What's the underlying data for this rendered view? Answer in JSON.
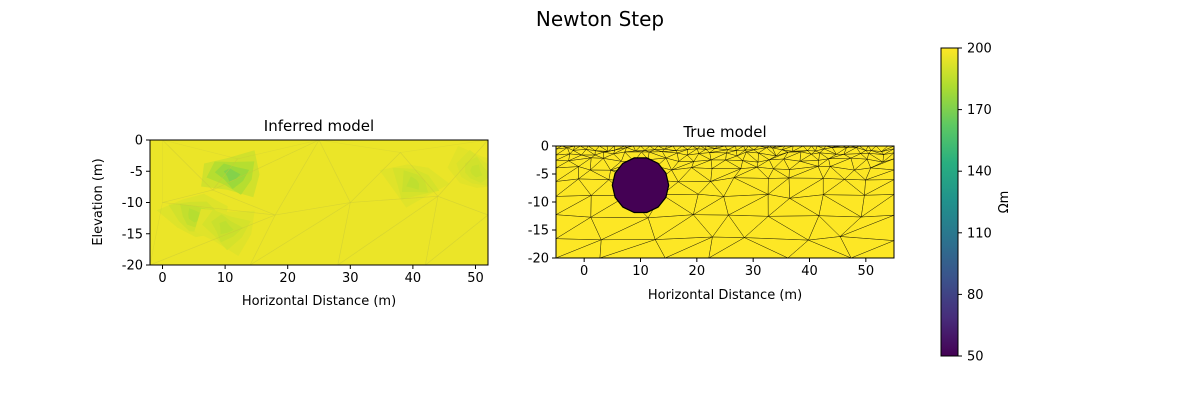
{
  "figure": {
    "title": "Newton Step"
  },
  "chart_data": [
    {
      "type": "heatmap",
      "title": "Inferred model",
      "xlabel": "Horizontal Distance (m)",
      "ylabel": "Elevation (m)",
      "xlim": [
        -2,
        52
      ],
      "ylim": [
        -20,
        0
      ],
      "xticks": [
        0,
        10,
        20,
        30,
        40,
        50
      ],
      "yticks": [
        0,
        -5,
        -10,
        -15,
        -20
      ],
      "background_resistivity": 196,
      "anomalies": [
        {
          "x": 11,
          "y": -5.5,
          "resistivity": 172
        },
        {
          "x": 5,
          "y": -12,
          "resistivity": 184
        },
        {
          "x": 10,
          "y": -14,
          "resistivity": 186
        },
        {
          "x": 40,
          "y": -7,
          "resistivity": 186
        },
        {
          "x": 50,
          "y": -5,
          "resistivity": 188
        }
      ]
    },
    {
      "type": "heatmap",
      "title": "True model",
      "xlabel": "Horizontal Distance (m)",
      "ylabel": "",
      "xlim": [
        -5,
        55
      ],
      "ylim": [
        -20,
        0
      ],
      "xticks": [
        0,
        10,
        20,
        30,
        40,
        50
      ],
      "yticks": [
        0,
        -5,
        -10,
        -15,
        -20
      ],
      "background_resistivity": 200,
      "anomaly": {
        "shape": "circle",
        "center_x": 10,
        "center_y": -7,
        "radius": 5,
        "resistivity": 50
      },
      "mesh": "triangular, refined near surface"
    }
  ],
  "colorbar": {
    "label": "Ωm",
    "range": [
      50,
      200
    ],
    "ticks": [
      50,
      80,
      110,
      140,
      170,
      200
    ],
    "colormap": "viridis"
  }
}
